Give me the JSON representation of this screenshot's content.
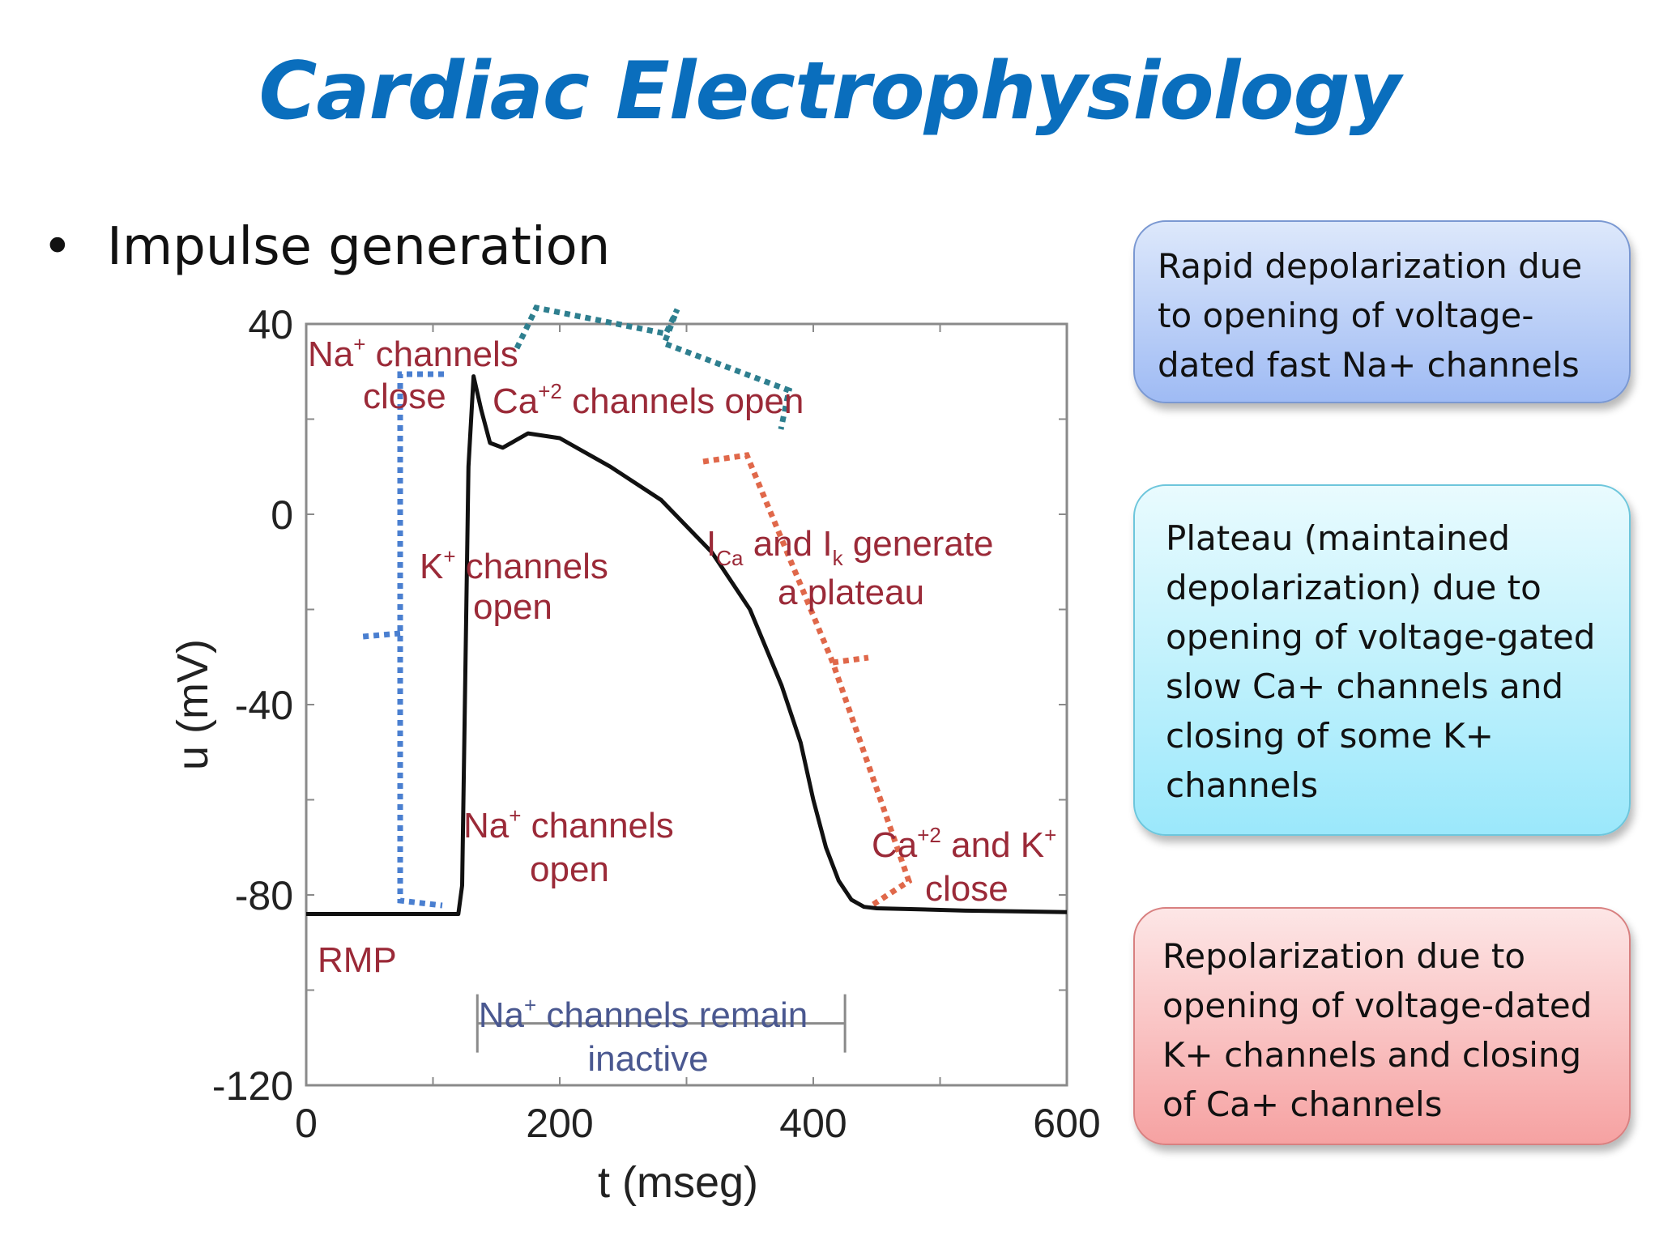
{
  "slide": {
    "title": "Cardiac Electrophysiology",
    "bullet": "Impulse generation",
    "bullet_mark": "•"
  },
  "callouts": {
    "depolarization": "Rapid depolarization due to opening of voltage-dated fast Na+ channels",
    "plateau": "Plateau (maintained depolarization) due to opening of voltage-gated slow Ca+ channels and closing of some K+ channels",
    "repolarization": "Repolarization due to opening of voltage-dated K+ channels and closing of Ca+ channels"
  },
  "colors": {
    "title": "#0a6ebd",
    "annotation_red": "#9b2a38",
    "annotation_blue": "#4a5890",
    "bracket_blue": "#4a7fd0",
    "bracket_teal": "#2e7f8f",
    "bracket_orange": "#e0684a",
    "curve": "#111111"
  },
  "chart_data": {
    "type": "line",
    "xlabel": "t (mseg)",
    "ylabel": "u (mV)",
    "xlim": [
      0,
      600
    ],
    "ylim": [
      -120,
      40
    ],
    "xticks": [
      0,
      200,
      400,
      600
    ],
    "yticks": [
      40,
      0,
      -40,
      -80,
      -120
    ],
    "series": [
      {
        "x": [
          0,
          120,
          123,
          128,
          132,
          138,
          145,
          155,
          175,
          200,
          240,
          280,
          320,
          350,
          375,
          390,
          400,
          410,
          420,
          430,
          440,
          450,
          480,
          520,
          600
        ],
        "y": [
          -84,
          -84,
          -78,
          10,
          29,
          22,
          15,
          14,
          17,
          16,
          10,
          3,
          -8,
          -20,
          -36,
          -48,
          -60,
          -70,
          -77,
          -81,
          -82.5,
          -82.8,
          -83,
          -83.3,
          -83.6
        ]
      }
    ],
    "annotations": {
      "na_close": [
        "Na",
        "+",
        " channels",
        "close"
      ],
      "ca_open": [
        "Ca",
        "+2",
        " channels open"
      ],
      "k_open": [
        "K",
        "+",
        " channels",
        "open"
      ],
      "plateau": [
        "I",
        "Ca",
        " and I",
        "k",
        " generate",
        "a plateau"
      ],
      "na_open": [
        "Na",
        "+",
        " channels",
        "open"
      ],
      "ca_k_close": [
        "Ca",
        "+2",
        " and K",
        "+",
        "close"
      ],
      "rmp": "RMP",
      "na_inactive": [
        "Na",
        "+",
        " channels remain",
        "inactive"
      ]
    },
    "na_inactive_span": [
      135,
      425
    ]
  }
}
